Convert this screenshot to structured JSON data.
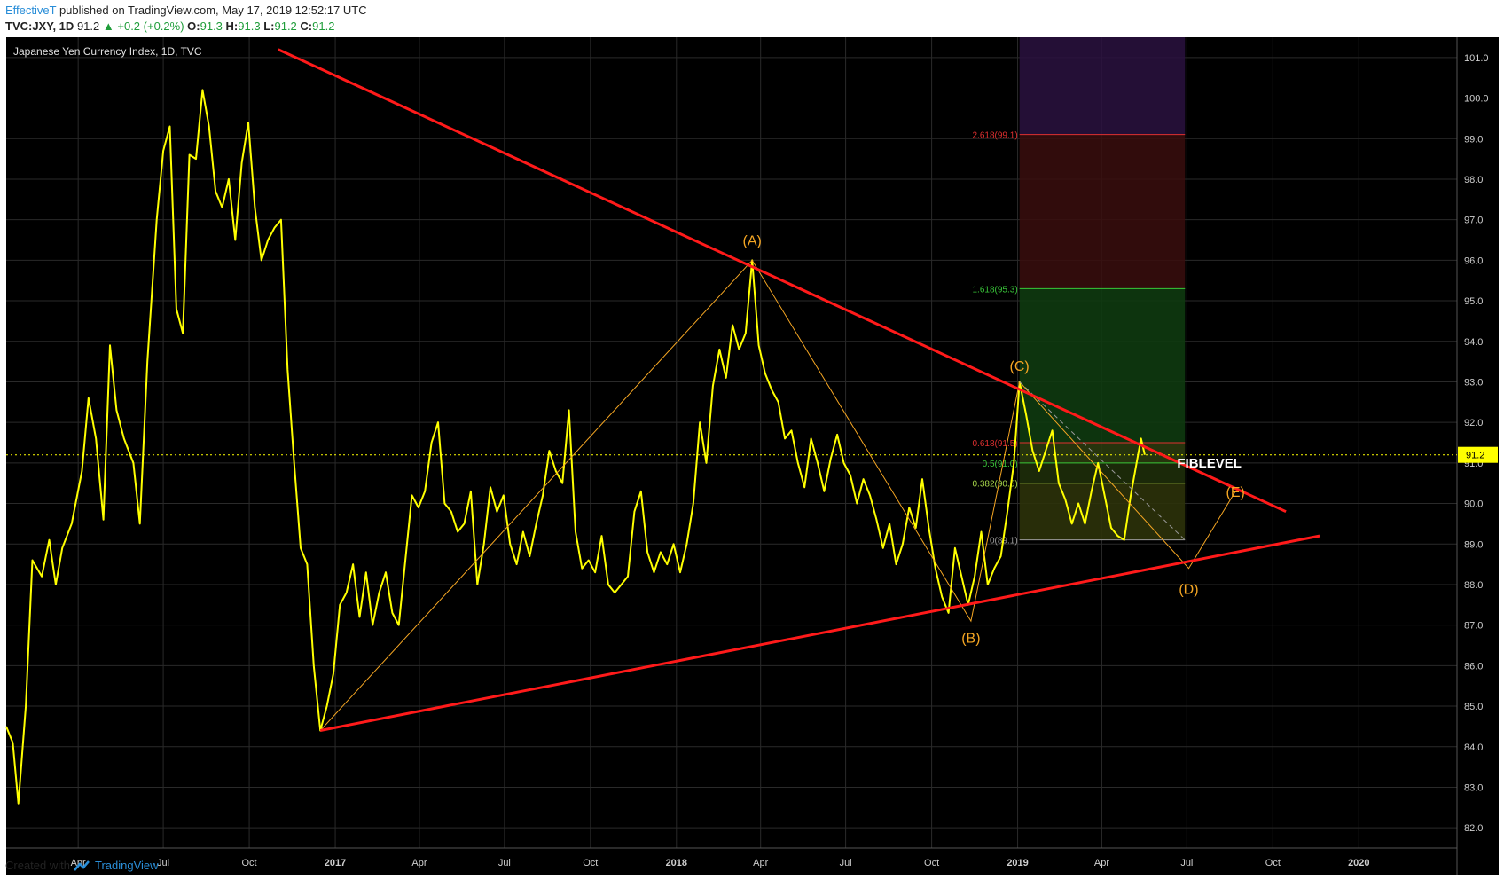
{
  "header": {
    "author": "EffectiveT",
    "published": "published on TradingView.com, May 17, 2019 12:52:17 UTC",
    "symbol": "TVC:JXY, 1D",
    "last": "91.2",
    "change": "+0.2 (+0.2%)",
    "o_label": "O:",
    "o": "91.3",
    "h_label": "H:",
    "h": "91.3",
    "l_label": "L:",
    "l": "91.2",
    "c_label": "C:",
    "c": "91.2"
  },
  "footer": {
    "created": "Created with",
    "brand": "TradingView"
  },
  "colors": {
    "background": "#000000",
    "price": "#ffff00",
    "trend": "#ff1a1a",
    "wave": "#f5a623",
    "grid": "#2a2a2a"
  },
  "chart_data": {
    "type": "line",
    "title": "Japanese Yen Currency Index, 1D, TVC",
    "y_axis": {
      "min": 81.5,
      "max": 101.5,
      "ticks": [
        82.0,
        83.0,
        84.0,
        85.0,
        86.0,
        87.0,
        88.0,
        89.0,
        90.0,
        91.0,
        92.0,
        93.0,
        94.0,
        95.0,
        96.0,
        97.0,
        98.0,
        99.0,
        100.0,
        101.0
      ]
    },
    "x_axis": {
      "start": "2016-01-15",
      "end": "2020-04-15",
      "ticks": [
        {
          "date": "2016-04-01",
          "label": "Apr"
        },
        {
          "date": "2016-07-01",
          "label": "Jul"
        },
        {
          "date": "2016-10-01",
          "label": "Oct"
        },
        {
          "date": "2017-01-01",
          "label": "2017"
        },
        {
          "date": "2017-04-01",
          "label": "Apr"
        },
        {
          "date": "2017-07-01",
          "label": "Jul"
        },
        {
          "date": "2017-10-01",
          "label": "Oct"
        },
        {
          "date": "2018-01-01",
          "label": "2018"
        },
        {
          "date": "2018-04-01",
          "label": "Apr"
        },
        {
          "date": "2018-07-01",
          "label": "Jul"
        },
        {
          "date": "2018-10-01",
          "label": "Oct"
        },
        {
          "date": "2019-01-01",
          "label": "2019"
        },
        {
          "date": "2019-04-01",
          "label": "Apr"
        },
        {
          "date": "2019-07-01",
          "label": "Jul"
        },
        {
          "date": "2019-10-01",
          "label": "Oct"
        },
        {
          "date": "2020-01-01",
          "label": "2020"
        }
      ]
    },
    "grid": true,
    "last_price": {
      "value": 91.2,
      "label": "91.2"
    },
    "series": [
      {
        "points": [
          [
            "2016-01-15",
            84.5
          ],
          [
            "2016-01-22",
            84.1
          ],
          [
            "2016-01-28",
            82.6
          ],
          [
            "2016-02-05",
            85.0
          ],
          [
            "2016-02-12",
            88.6
          ],
          [
            "2016-02-22",
            88.2
          ],
          [
            "2016-03-01",
            89.1
          ],
          [
            "2016-03-08",
            88.0
          ],
          [
            "2016-03-15",
            88.9
          ],
          [
            "2016-03-25",
            89.5
          ],
          [
            "2016-04-05",
            90.8
          ],
          [
            "2016-04-12",
            92.6
          ],
          [
            "2016-04-20",
            91.6
          ],
          [
            "2016-04-28",
            89.6
          ],
          [
            "2016-05-05",
            93.9
          ],
          [
            "2016-05-12",
            92.3
          ],
          [
            "2016-05-20",
            91.6
          ],
          [
            "2016-05-30",
            91.0
          ],
          [
            "2016-06-06",
            89.5
          ],
          [
            "2016-06-14",
            93.5
          ],
          [
            "2016-06-24",
            97.0
          ],
          [
            "2016-07-01",
            98.7
          ],
          [
            "2016-07-08",
            99.3
          ],
          [
            "2016-07-15",
            94.8
          ],
          [
            "2016-07-22",
            94.2
          ],
          [
            "2016-07-29",
            98.6
          ],
          [
            "2016-08-05",
            98.5
          ],
          [
            "2016-08-12",
            100.2
          ],
          [
            "2016-08-19",
            99.3
          ],
          [
            "2016-08-26",
            97.7
          ],
          [
            "2016-09-02",
            97.3
          ],
          [
            "2016-09-09",
            98.0
          ],
          [
            "2016-09-16",
            96.5
          ],
          [
            "2016-09-23",
            98.4
          ],
          [
            "2016-09-30",
            99.4
          ],
          [
            "2016-10-07",
            97.3
          ],
          [
            "2016-10-14",
            96.0
          ],
          [
            "2016-10-21",
            96.5
          ],
          [
            "2016-10-28",
            96.8
          ],
          [
            "2016-11-04",
            97.0
          ],
          [
            "2016-11-11",
            93.3
          ],
          [
            "2016-11-18",
            91.0
          ],
          [
            "2016-11-25",
            88.9
          ],
          [
            "2016-12-02",
            88.5
          ],
          [
            "2016-12-09",
            86.0
          ],
          [
            "2016-12-16",
            84.4
          ],
          [
            "2016-12-23",
            85.0
          ],
          [
            "2016-12-30",
            85.8
          ],
          [
            "2017-01-06",
            87.5
          ],
          [
            "2017-01-13",
            87.8
          ],
          [
            "2017-01-20",
            88.5
          ],
          [
            "2017-01-27",
            87.2
          ],
          [
            "2017-02-03",
            88.3
          ],
          [
            "2017-02-10",
            87.0
          ],
          [
            "2017-02-17",
            87.8
          ],
          [
            "2017-02-24",
            88.3
          ],
          [
            "2017-03-03",
            87.3
          ],
          [
            "2017-03-10",
            87.0
          ],
          [
            "2017-03-17",
            88.6
          ],
          [
            "2017-03-24",
            90.2
          ],
          [
            "2017-03-31",
            89.9
          ],
          [
            "2017-04-07",
            90.3
          ],
          [
            "2017-04-14",
            91.5
          ],
          [
            "2017-04-21",
            92.0
          ],
          [
            "2017-04-28",
            90.0
          ],
          [
            "2017-05-05",
            89.8
          ],
          [
            "2017-05-12",
            89.3
          ],
          [
            "2017-05-19",
            89.5
          ],
          [
            "2017-05-26",
            90.3
          ],
          [
            "2017-06-02",
            88.0
          ],
          [
            "2017-06-09",
            89.0
          ],
          [
            "2017-06-16",
            90.4
          ],
          [
            "2017-06-23",
            89.8
          ],
          [
            "2017-06-30",
            90.2
          ],
          [
            "2017-07-07",
            89.0
          ],
          [
            "2017-07-14",
            88.5
          ],
          [
            "2017-07-21",
            89.3
          ],
          [
            "2017-07-28",
            88.7
          ],
          [
            "2017-08-04",
            89.5
          ],
          [
            "2017-08-11",
            90.2
          ],
          [
            "2017-08-18",
            91.3
          ],
          [
            "2017-08-25",
            90.8
          ],
          [
            "2017-09-01",
            90.5
          ],
          [
            "2017-09-08",
            92.3
          ],
          [
            "2017-09-15",
            89.3
          ],
          [
            "2017-09-22",
            88.4
          ],
          [
            "2017-09-29",
            88.6
          ],
          [
            "2017-10-06",
            88.3
          ],
          [
            "2017-10-13",
            89.2
          ],
          [
            "2017-10-20",
            88.0
          ],
          [
            "2017-10-27",
            87.8
          ],
          [
            "2017-11-03",
            88.0
          ],
          [
            "2017-11-10",
            88.2
          ],
          [
            "2017-11-17",
            89.8
          ],
          [
            "2017-11-24",
            90.3
          ],
          [
            "2017-12-01",
            88.8
          ],
          [
            "2017-12-08",
            88.3
          ],
          [
            "2017-12-15",
            88.8
          ],
          [
            "2017-12-22",
            88.5
          ],
          [
            "2017-12-29",
            89.0
          ],
          [
            "2018-01-05",
            88.3
          ],
          [
            "2018-01-12",
            89.0
          ],
          [
            "2018-01-19",
            90.0
          ],
          [
            "2018-01-26",
            92.0
          ],
          [
            "2018-02-02",
            91.0
          ],
          [
            "2018-02-09",
            92.9
          ],
          [
            "2018-02-16",
            93.8
          ],
          [
            "2018-02-23",
            93.1
          ],
          [
            "2018-03-02",
            94.4
          ],
          [
            "2018-03-09",
            93.8
          ],
          [
            "2018-03-16",
            94.2
          ],
          [
            "2018-03-23",
            96.0
          ],
          [
            "2018-03-30",
            93.9
          ],
          [
            "2018-04-06",
            93.2
          ],
          [
            "2018-04-13",
            92.8
          ],
          [
            "2018-04-20",
            92.5
          ],
          [
            "2018-04-27",
            91.6
          ],
          [
            "2018-05-04",
            91.8
          ],
          [
            "2018-05-11",
            91.0
          ],
          [
            "2018-05-18",
            90.4
          ],
          [
            "2018-05-25",
            91.6
          ],
          [
            "2018-06-01",
            91.0
          ],
          [
            "2018-06-08",
            90.3
          ],
          [
            "2018-06-15",
            91.1
          ],
          [
            "2018-06-22",
            91.7
          ],
          [
            "2018-06-29",
            91.0
          ],
          [
            "2018-07-06",
            90.7
          ],
          [
            "2018-07-13",
            90.0
          ],
          [
            "2018-07-20",
            90.6
          ],
          [
            "2018-07-27",
            90.2
          ],
          [
            "2018-08-03",
            89.6
          ],
          [
            "2018-08-10",
            88.9
          ],
          [
            "2018-08-17",
            89.5
          ],
          [
            "2018-08-24",
            88.5
          ],
          [
            "2018-08-31",
            89.0
          ],
          [
            "2018-09-07",
            89.9
          ],
          [
            "2018-09-14",
            89.4
          ],
          [
            "2018-09-21",
            90.6
          ],
          [
            "2018-09-28",
            89.4
          ],
          [
            "2018-10-05",
            88.4
          ],
          [
            "2018-10-12",
            87.7
          ],
          [
            "2018-10-19",
            87.3
          ],
          [
            "2018-10-26",
            88.9
          ],
          [
            "2018-11-02",
            88.2
          ],
          [
            "2018-11-09",
            87.5
          ],
          [
            "2018-11-16",
            88.2
          ],
          [
            "2018-11-23",
            89.3
          ],
          [
            "2018-11-30",
            88.0
          ],
          [
            "2018-12-07",
            88.4
          ],
          [
            "2018-12-14",
            88.7
          ],
          [
            "2018-12-21",
            89.8
          ],
          [
            "2018-12-28",
            91.0
          ],
          [
            "2019-01-03",
            93.0
          ],
          [
            "2019-01-10",
            92.2
          ],
          [
            "2019-01-17",
            91.3
          ],
          [
            "2019-01-24",
            90.8
          ],
          [
            "2019-01-31",
            91.3
          ],
          [
            "2019-02-07",
            91.8
          ],
          [
            "2019-02-14",
            90.5
          ],
          [
            "2019-02-21",
            90.1
          ],
          [
            "2019-02-28",
            89.5
          ],
          [
            "2019-03-07",
            90.0
          ],
          [
            "2019-03-14",
            89.5
          ],
          [
            "2019-03-21",
            90.3
          ],
          [
            "2019-03-28",
            91.0
          ],
          [
            "2019-04-04",
            90.2
          ],
          [
            "2019-04-11",
            89.4
          ],
          [
            "2019-04-18",
            89.2
          ],
          [
            "2019-04-25",
            89.1
          ],
          [
            "2019-05-02",
            90.2
          ],
          [
            "2019-05-09",
            91.1
          ],
          [
            "2019-05-13",
            91.6
          ],
          [
            "2019-05-17",
            91.2
          ]
        ]
      }
    ],
    "trendlines": [
      {
        "from": [
          "2016-12-16",
          84.4
        ],
        "to": [
          "2019-11-20",
          89.2
        ]
      },
      {
        "from": [
          "2016-11-01",
          101.2
        ],
        "to": [
          "2019-10-15",
          89.8
        ]
      }
    ],
    "waves": [
      {
        "label": "(A)",
        "date": "2018-03-23",
        "value": 96.0,
        "label_value": 96.5
      },
      {
        "label": "(B)",
        "date": "2018-11-12",
        "value": 87.1,
        "label_value": 86.7
      },
      {
        "label": "(C)",
        "date": "2019-01-03",
        "value": 93.0,
        "label_value": 93.4
      },
      {
        "label": "(D)",
        "date": "2019-07-03",
        "value": 88.4,
        "label_value": 87.9
      },
      {
        "label": "(E)",
        "date": "2019-08-22",
        "value": 90.3,
        "label_value": 90.3
      }
    ],
    "wave_path": [
      [
        "2016-12-16",
        84.4
      ],
      [
        "2018-03-23",
        96.0
      ],
      [
        "2018-11-12",
        87.1
      ],
      [
        "2019-01-03",
        93.0
      ],
      [
        "2019-07-03",
        88.4
      ],
      [
        "2019-08-22",
        90.3
      ]
    ],
    "projection_dashed": {
      "from": [
        "2019-01-03",
        93.0
      ],
      "to": [
        "2019-06-29",
        89.1
      ]
    },
    "fib": {
      "start": "2019-01-03",
      "end": "2019-06-29",
      "top": 101.5,
      "base": 89.1,
      "levels": [
        {
          "label": "2.618(99.1)",
          "value": 99.1,
          "color": "#e03030"
        },
        {
          "label": "1.618(95.3)",
          "value": 95.3,
          "color": "#39c639"
        },
        {
          "label": "0.618(91.5)",
          "value": 91.5,
          "color": "#e03030"
        },
        {
          "label": "0.5(91.0)",
          "value": 91.0,
          "color": "#39c639"
        },
        {
          "label": "0.382(90.5)",
          "value": 90.5,
          "color": "#a8d84a"
        },
        {
          "label": "0(89.1)",
          "value": 89.1,
          "color": "#9a9a9a"
        }
      ]
    },
    "annotation": {
      "text": "FIBLEVEL",
      "date": "2019-07-25",
      "value": 91.0
    }
  }
}
